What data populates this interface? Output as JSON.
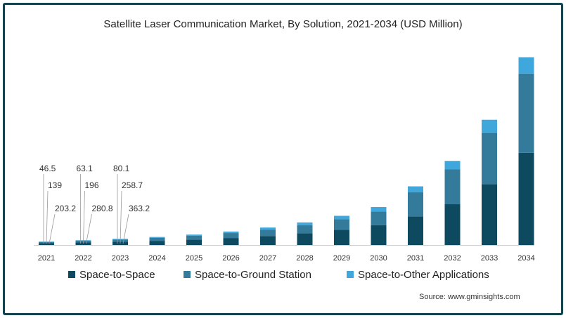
{
  "chart_data": {
    "type": "bar",
    "stacked": true,
    "title": "Satellite Laser Communication Market, By Solution, 2021-2034 (USD Million)",
    "xlabel": "",
    "ylabel": "",
    "categories": [
      "2021",
      "2022",
      "2023",
      "2024",
      "2025",
      "2026",
      "2027",
      "2028",
      "2029",
      "2030",
      "2031",
      "2032",
      "2033",
      "2034"
    ],
    "series": [
      {
        "name": "Space-to-Space",
        "color": "#0e4a5f",
        "values": [
          203.2,
          280.8,
          363.2,
          470,
          610,
          790,
          1020,
          1320,
          1720,
          2250,
          3240,
          4620,
          6900,
          10450
        ]
      },
      {
        "name": "Space-to-Ground Station",
        "color": "#347a9a",
        "values": [
          139,
          196,
          258.7,
          330,
          430,
          560,
          720,
          930,
          1190,
          1540,
          2730,
          3940,
          5850,
          9000
        ]
      },
      {
        "name": "Space-to-Other Applications",
        "color": "#3fa7dc",
        "values": [
          46.5,
          63.1,
          80.1,
          110,
          140,
          180,
          240,
          310,
          400,
          510,
          680,
          980,
          1450,
          1850
        ]
      }
    ],
    "data_labels": [
      {
        "category": "2021",
        "series": "Space-to-Other Applications",
        "text": "46.5"
      },
      {
        "category": "2021",
        "series": "Space-to-Ground Station",
        "text": "139"
      },
      {
        "category": "2021",
        "series": "Space-to-Space",
        "text": "203.2"
      },
      {
        "category": "2022",
        "series": "Space-to-Other Applications",
        "text": "63.1"
      },
      {
        "category": "2022",
        "series": "Space-to-Ground Station",
        "text": "196"
      },
      {
        "category": "2022",
        "series": "Space-to-Space",
        "text": "280.8"
      },
      {
        "category": "2023",
        "series": "Space-to-Other Applications",
        "text": "80.1"
      },
      {
        "category": "2023",
        "series": "Space-to-Ground Station",
        "text": "258.7"
      },
      {
        "category": "2023",
        "series": "Space-to-Space",
        "text": "363.2"
      }
    ],
    "ylim": [
      0,
      21500
    ],
    "grid": false,
    "legend_position": "bottom"
  },
  "source": "Source: www.gminsights.com"
}
